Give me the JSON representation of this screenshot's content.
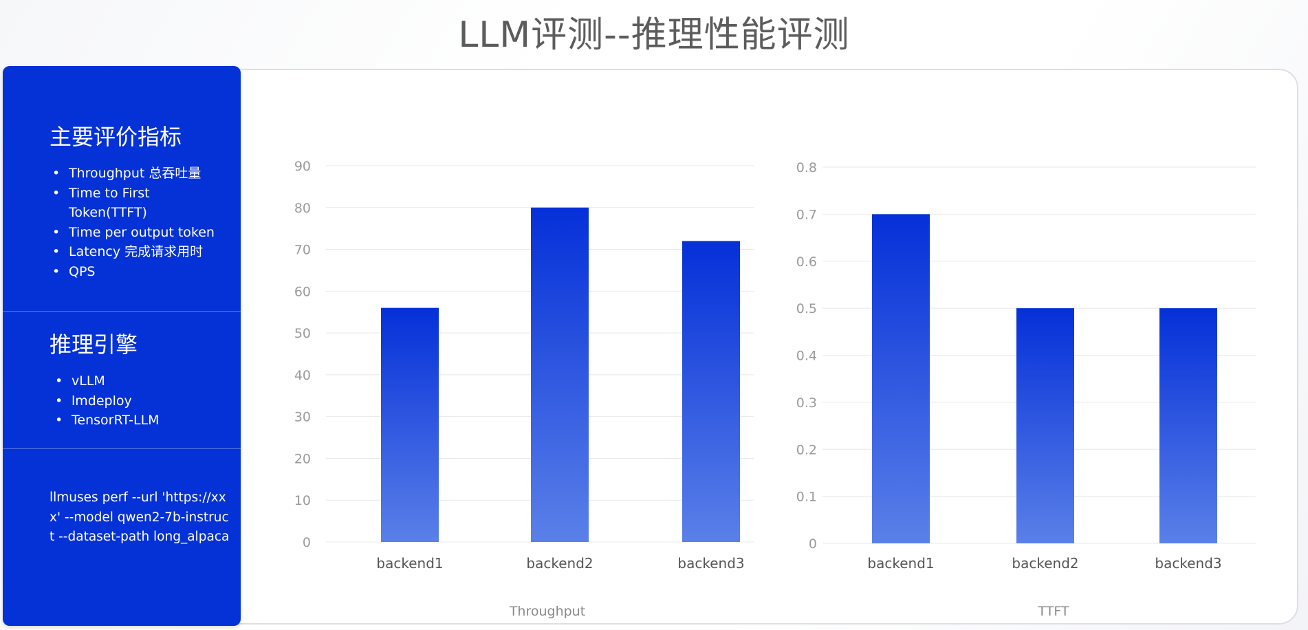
{
  "page_title": "LLM评测--推理性能评测",
  "sidebar": {
    "metrics_heading": "主要评价指标",
    "metrics": [
      "Throughput 总吞吐量",
      "Time to First Token(TTFT)",
      "Time per output token",
      "Latency 完成请求用时",
      "QPS"
    ],
    "engines_heading": "推理引擎",
    "engines": [
      "vLLM",
      "lmdeploy",
      "TensorRT-LLM"
    ],
    "command": "llmuses perf --url 'https://xxx' --model qwen2-7b-instruct --dataset-path long_alpaca"
  },
  "colors": {
    "sidebar_bg": "#0532d6",
    "bar_top": "#0530d8",
    "bar_bottom": "#5a80e8",
    "grid": "#e8e8e8"
  },
  "chart_data": [
    {
      "type": "bar",
      "caption": "Throughput",
      "categories": [
        "backend1",
        "backend2",
        "backend3"
      ],
      "values": [
        56,
        80,
        72
      ],
      "ylim": [
        0,
        90
      ],
      "yticks": [
        "0",
        "10",
        "20",
        "30",
        "40",
        "50",
        "60",
        "70",
        "80",
        "90"
      ],
      "grid": true
    },
    {
      "type": "bar",
      "caption": "TTFT",
      "categories": [
        "backend1",
        "backend2",
        "backend3"
      ],
      "values": [
        0.7,
        0.5,
        0.5
      ],
      "ylim": [
        0,
        0.8
      ],
      "yticks": [
        "0",
        "0.1",
        "0.2",
        "0.3",
        "0.4",
        "0.5",
        "0.6",
        "0.7",
        "0.8"
      ],
      "grid": true
    }
  ]
}
